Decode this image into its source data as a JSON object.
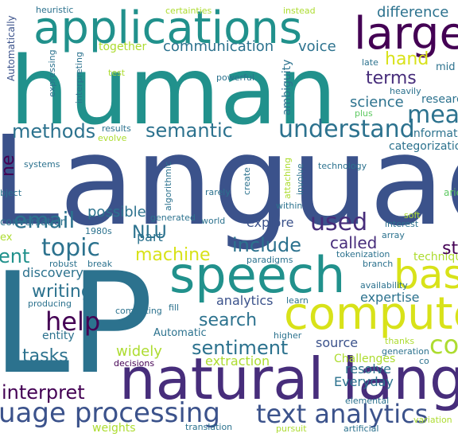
{
  "colors": {
    "background": "#ffffff",
    "palette": [
      "#440154",
      "#472d7b",
      "#3b528b",
      "#2c728e",
      "#21918c",
      "#28ae80",
      "#5ec962",
      "#addc30",
      "#fde725"
    ]
  },
  "words": [
    {
      "text": "Language",
      "color": "#3b528b"
    },
    {
      "text": "human",
      "color": "#21918c"
    },
    {
      "text": "LP",
      "color": "#2c728e"
    },
    {
      "text": "natural language",
      "color": "#472d7b"
    },
    {
      "text": "applications",
      "color": "#21918c"
    },
    {
      "text": "large",
      "color": "#440154"
    },
    {
      "text": "speech",
      "color": "#21918c"
    },
    {
      "text": "computer",
      "color": "#d8e219"
    },
    {
      "text": "based",
      "color": "#d8e219"
    },
    {
      "text": "uage processing",
      "color": "#3b528b"
    },
    {
      "text": "text analytics",
      "color": "#3b528b"
    },
    {
      "text": "understand",
      "color": "#2c728e"
    },
    {
      "text": "meaning",
      "color": "#2c728e"
    },
    {
      "text": "topic",
      "color": "#2c728e"
    },
    {
      "text": "email",
      "color": "#2c728e"
    },
    {
      "text": "help",
      "color": "#440154"
    },
    {
      "text": "machine",
      "color": "#d8e219"
    },
    {
      "text": "used",
      "color": "#472d7b"
    },
    {
      "text": "include",
      "color": "#2c728e"
    },
    {
      "text": "semantic",
      "color": "#2c728e"
    },
    {
      "text": "methods",
      "color": "#2c728e"
    },
    {
      "text": "sentiment",
      "color": "#2c728e"
    },
    {
      "text": "interpret",
      "color": "#440154"
    },
    {
      "text": "tasks",
      "color": "#2c728e"
    },
    {
      "text": "writing",
      "color": "#2c728e"
    },
    {
      "text": "search",
      "color": "#2c728e"
    },
    {
      "text": "called",
      "color": "#472d7b"
    },
    {
      "text": "hand",
      "color": "#d8e219"
    },
    {
      "text": "terms",
      "color": "#472d7b"
    },
    {
      "text": "science",
      "color": "#2c728e"
    },
    {
      "text": "communication",
      "color": "#2c728e"
    },
    {
      "text": "voice",
      "color": "#2c728e"
    },
    {
      "text": "difference",
      "color": "#2c728e"
    },
    {
      "text": "widely",
      "color": "#addc30"
    },
    {
      "text": "discovery",
      "color": "#2c728e"
    },
    {
      "text": "ent",
      "color": "#21918c"
    },
    {
      "text": "analytics",
      "color": "#3b528b"
    },
    {
      "text": "explore",
      "color": "#3b528b"
    },
    {
      "text": "expertise",
      "color": "#2c728e"
    },
    {
      "text": "NLU",
      "color": "#2c728e"
    },
    {
      "text": "possible",
      "color": "#2c728e"
    },
    {
      "text": "part",
      "color": "#2c728e"
    },
    {
      "text": "extraction",
      "color": "#addc30"
    },
    {
      "text": "source",
      "color": "#3b528b"
    },
    {
      "text": "resolve",
      "color": "#2c728e"
    },
    {
      "text": "Everyday",
      "color": "#2c728e"
    },
    {
      "text": "entity",
      "color": "#2c728e"
    },
    {
      "text": "Automatic",
      "color": "#2c728e"
    },
    {
      "text": "together",
      "color": "#addc30"
    },
    {
      "text": "heuristic",
      "color": "#2c728e"
    },
    {
      "text": "certainties",
      "color": "#addc30"
    },
    {
      "text": "instead",
      "color": "#addc30"
    },
    {
      "text": "late",
      "color": "#2c728e"
    },
    {
      "text": "heavily",
      "color": "#2c728e"
    },
    {
      "text": "powerful",
      "color": "#2c728e"
    },
    {
      "text": "test",
      "color": "#addc30"
    },
    {
      "text": "plus",
      "color": "#5ec962"
    },
    {
      "text": "evolve",
      "color": "#addc30"
    },
    {
      "text": "results",
      "color": "#2c728e"
    },
    {
      "text": "systems",
      "color": "#2c728e"
    },
    {
      "text": "technology",
      "color": "#2c728e"
    },
    {
      "text": "rarely",
      "color": "#2c728e"
    },
    {
      "text": "generated",
      "color": "#2c728e"
    },
    {
      "text": "world",
      "color": "#2c728e"
    },
    {
      "text": "1980s",
      "color": "#2c728e"
    },
    {
      "text": "interest",
      "color": "#2c728e"
    },
    {
      "text": "soft",
      "color": "#addc30"
    },
    {
      "text": "array",
      "color": "#2c728e"
    },
    {
      "text": "paradigms",
      "color": "#2c728e"
    },
    {
      "text": "tokenization",
      "color": "#2c728e"
    },
    {
      "text": "branch",
      "color": "#2c728e"
    },
    {
      "text": "robust",
      "color": "#2c728e"
    },
    {
      "text": "break",
      "color": "#2c728e"
    },
    {
      "text": "producing",
      "color": "#2c728e"
    },
    {
      "text": "computing",
      "color": "#2c728e"
    },
    {
      "text": "fill",
      "color": "#2c728e"
    },
    {
      "text": "learn",
      "color": "#2c728e"
    },
    {
      "text": "availability",
      "color": "#2c728e"
    },
    {
      "text": "higher",
      "color": "#2c728e"
    },
    {
      "text": "thanks",
      "color": "#addc30"
    },
    {
      "text": "generation",
      "color": "#2c728e"
    },
    {
      "text": "decisions",
      "color": "#440154"
    },
    {
      "text": "elemental",
      "color": "#2c728e"
    },
    {
      "text": "weights",
      "color": "#addc30"
    },
    {
      "text": "translation",
      "color": "#2c728e"
    },
    {
      "text": "pursuit",
      "color": "#addc30"
    },
    {
      "text": "artificial",
      "color": "#2c728e"
    },
    {
      "text": "variation",
      "color": "#addc30"
    },
    {
      "text": "Challenges",
      "color": "#addc30"
    },
    {
      "text": "within",
      "color": "#2c728e"
    },
    {
      "text": "mid",
      "color": "#2c728e"
    },
    {
      "text": "research",
      "color": "#2c728e"
    },
    {
      "text": "information",
      "color": "#2c728e"
    },
    {
      "text": "categorization",
      "color": "#2c728e"
    },
    {
      "text": "technique",
      "color": "#addc30"
    },
    {
      "text": "conversation",
      "color": "#2c728e"
    },
    {
      "text": "ex",
      "color": "#addc30"
    },
    {
      "text": "bject",
      "color": "#2c728e"
    },
    {
      "text": "aries",
      "color": "#5ec962"
    },
    {
      "text": "co",
      "color": "#2c728e"
    },
    {
      "text": "computation",
      "color": "#addc30"
    },
    {
      "text": "st",
      "color": "#440154"
    },
    {
      "text": "ne",
      "color": "#440154"
    },
    {
      "text": "Automatically",
      "color": "#3b528b"
    },
    {
      "text": "interpreting",
      "color": "#2c728e"
    },
    {
      "text": "expressing",
      "color": "#2c728e"
    },
    {
      "text": "ambiguity",
      "color": "#2c728e"
    },
    {
      "text": "algorithmic",
      "color": "#2c728e"
    },
    {
      "text": "create",
      "color": "#2c728e"
    },
    {
      "text": "attaching",
      "color": "#addc30"
    },
    {
      "text": "involve",
      "color": "#2c728e"
    }
  ]
}
